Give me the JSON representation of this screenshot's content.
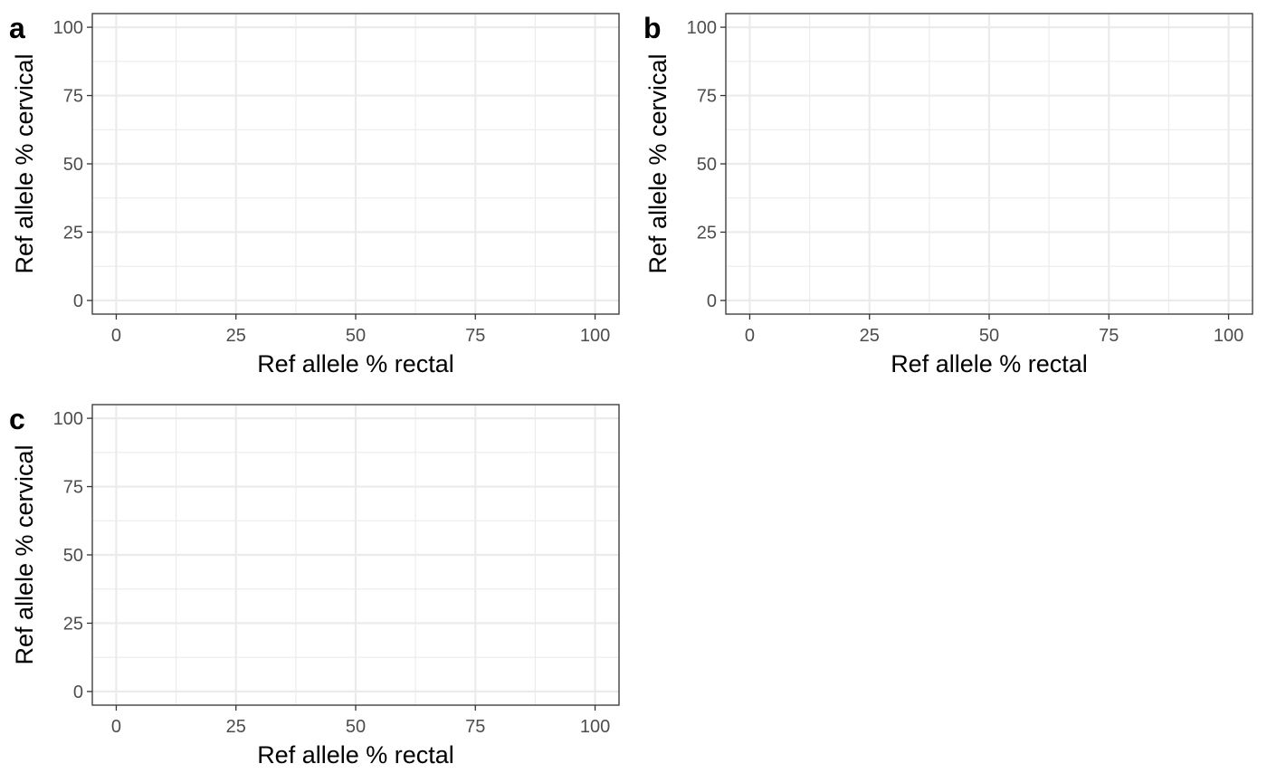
{
  "chart_data": [
    {
      "type": "scatter",
      "tag": "a",
      "xlabel": "Ref allele % rectal",
      "ylabel": "Ref allele % cervical",
      "xlim": [
        -5,
        105
      ],
      "ylim": [
        -5,
        105
      ],
      "xticks": [
        0,
        25,
        50,
        75,
        100
      ],
      "yticks": [
        0,
        25,
        50,
        75,
        100
      ],
      "grid": true,
      "series": [
        {
          "points": []
        }
      ]
    },
    {
      "type": "scatter",
      "tag": "b",
      "xlabel": "Ref allele % rectal",
      "ylabel": "Ref allele % cervical",
      "xlim": [
        -5,
        105
      ],
      "ylim": [
        -5,
        105
      ],
      "xticks": [
        0,
        25,
        50,
        75,
        100
      ],
      "yticks": [
        0,
        25,
        50,
        75,
        100
      ],
      "grid": true,
      "series": [
        {
          "points": []
        }
      ]
    },
    {
      "type": "scatter",
      "tag": "c",
      "xlabel": "Ref allele % rectal",
      "ylabel": "Ref allele % cervical",
      "xlim": [
        -5,
        105
      ],
      "ylim": [
        -5,
        105
      ],
      "xticks": [
        0,
        25,
        50,
        75,
        100
      ],
      "yticks": [
        0,
        25,
        50,
        75,
        100
      ],
      "grid": true,
      "series": [
        {
          "points": []
        }
      ]
    }
  ],
  "colors": {
    "panel_border": "#333333",
    "grid": "#ebebeb",
    "tick_label": "#4d4d4d",
    "axis_title": "#000000"
  }
}
